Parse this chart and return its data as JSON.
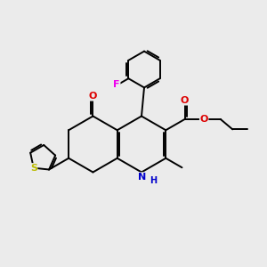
{
  "bg_color": "#ebebeb",
  "bond_color": "#000000",
  "atom_colors": {
    "F": "#ee00ee",
    "O": "#dd0000",
    "N": "#0000cc",
    "S": "#bbbb00",
    "C": "#000000"
  },
  "lw": 1.4,
  "figsize": [
    3.0,
    3.0
  ],
  "dpi": 100
}
